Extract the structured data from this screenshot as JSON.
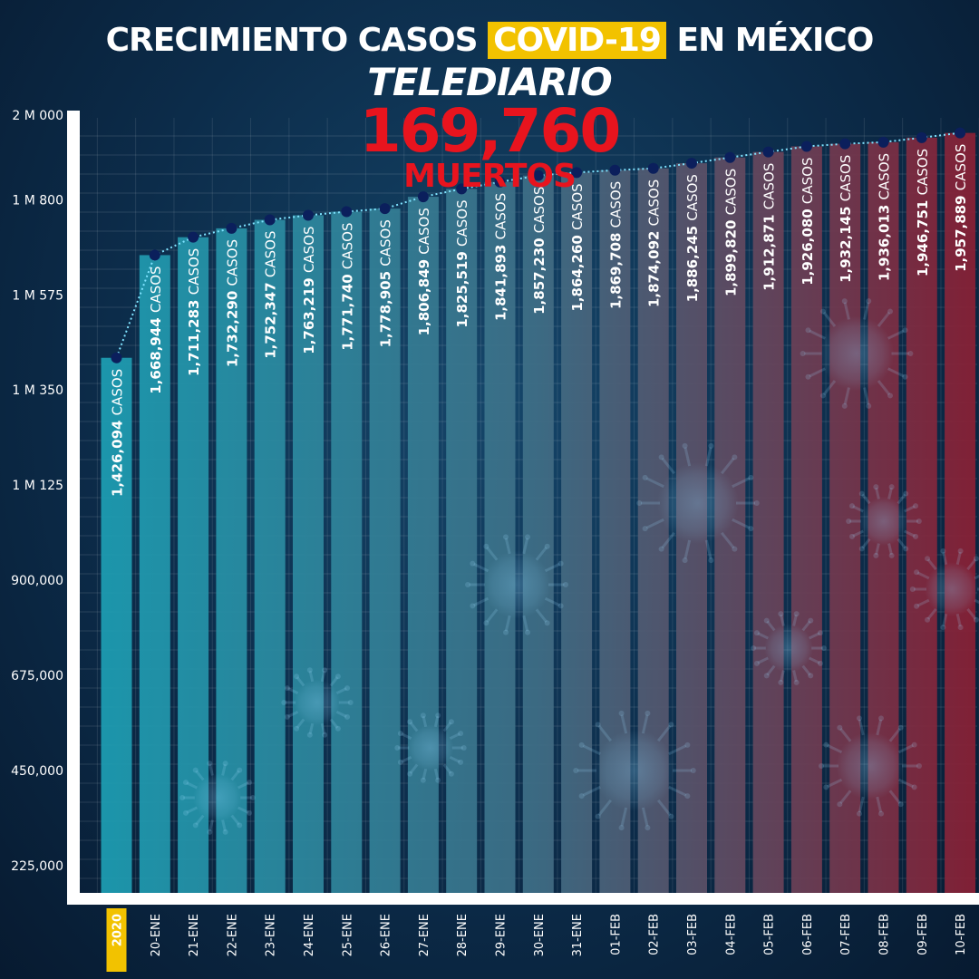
{
  "header": {
    "title_before": "CRECIMIENTO CASOS",
    "title_highlight": "COVID-19",
    "title_after": "EN MÉXICO",
    "brand": "TELEDIARIO",
    "deaths_value": "169,760",
    "deaths_label": "MUERTOS"
  },
  "colors": {
    "background": "#0c2c4a",
    "bar_start": "#1d9fb4",
    "bar_end": "#8a2035",
    "highlight": "#f2c200",
    "deaths": "#e8141e",
    "line": "#7fe3ff",
    "marker": "#0b1f5c"
  },
  "chart_data": {
    "type": "bar",
    "title": "CRECIMIENTO CASOS COVID-19 EN MÉXICO",
    "categories": [
      "2020",
      "20-ENE",
      "21-ENE",
      "22-ENE",
      "23-ENE",
      "24-ENE",
      "25-ENE",
      "26-ENE",
      "27-ENE",
      "28-ENE",
      "29-ENE",
      "30-ENE",
      "31-ENE",
      "01-FEB",
      "02-FEB",
      "03-FEB",
      "04-FEB",
      "05-FEB",
      "06-FEB",
      "07-FEB",
      "08-FEB",
      "09-FEB",
      "10-FEB"
    ],
    "values": [
      1426094,
      1668944,
      1711283,
      1732290,
      1752347,
      1763219,
      1771740,
      1778905,
      1806849,
      1825519,
      1841893,
      1857230,
      1864260,
      1869708,
      1874092,
      1886245,
      1899820,
      1912871,
      1926080,
      1932145,
      1936013,
      1946751,
      1957889
    ],
    "value_labels": [
      "1,426,094",
      "1,668,944",
      "1,711,283",
      "1,732,290",
      "1,752,347",
      "1,763,219",
      "1,771,740",
      "1,778,905",
      "1,806,849",
      "1,825,519",
      "1,841,893",
      "1,857,230",
      "1,864,260",
      "1,869,708",
      "1,874,092",
      "1,886,245",
      "1,899,820",
      "1,912,871",
      "1,926,080",
      "1,932,145",
      "1,936,013",
      "1,946,751",
      "1,957,889"
    ],
    "value_suffix": "CASOS",
    "yticks": [
      {
        "value": 225000,
        "label": "225,000"
      },
      {
        "value": 450000,
        "label": "450,000"
      },
      {
        "value": 675000,
        "label": "675,000"
      },
      {
        "value": 900000,
        "label": "900,000"
      },
      {
        "value": 1125000,
        "label": "1 M 125"
      },
      {
        "value": 1350000,
        "label": "1 M 350"
      },
      {
        "value": 1575000,
        "label": "1 M 575"
      },
      {
        "value": 1800000,
        "label": "1 M 800"
      },
      {
        "value": 2000000,
        "label": "2 M 000"
      }
    ],
    "ylim": [
      0,
      2000000
    ],
    "highlight_category": "2020",
    "series": [
      {
        "values": [
          1426094,
          1668944,
          1711283,
          1732290,
          1752347,
          1763219,
          1771740,
          1778905,
          1806849,
          1825519,
          1841893,
          1857230,
          1864260,
          1869708,
          1874092,
          1886245,
          1899820,
          1912871,
          1926080,
          1932145,
          1936013,
          1946751,
          1957889
        ]
      }
    ],
    "grid": true,
    "legend": "none",
    "trend_line": "dotted"
  }
}
